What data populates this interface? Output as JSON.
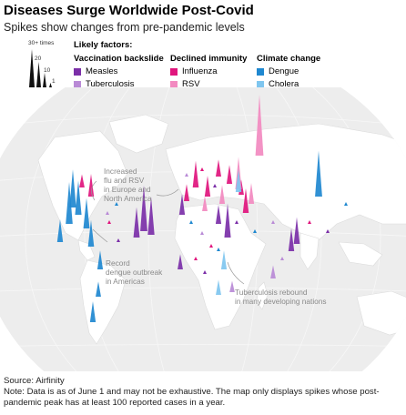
{
  "title": "Diseases Surge Worldwide Post-Covid",
  "subtitle": "Spikes show changes from pre-pandemic levels",
  "scale_legend": {
    "labels": [
      "30+ times",
      "20",
      "10",
      "1"
    ]
  },
  "legend": {
    "heading": "Likely factors:",
    "groups": [
      {
        "label": "Vaccination backslide",
        "items": [
          {
            "label": "Measles",
            "color": "#7b2fa8"
          },
          {
            "label": "Tuberculosis",
            "color": "#b98ad6"
          }
        ]
      },
      {
        "label": "Declined immunity",
        "items": [
          {
            "label": "Influenza",
            "color": "#e0157d"
          },
          {
            "label": "RSV",
            "color": "#f28ac0"
          }
        ]
      },
      {
        "label": "Climate change",
        "items": [
          {
            "label": "Dengue",
            "color": "#1f88d0"
          },
          {
            "label": "Cholera",
            "color": "#7fc6ef"
          }
        ]
      }
    ]
  },
  "annotations": {
    "flu_rsv": [
      "Increased",
      "flu and RSV",
      "in Europe and",
      "North America"
    ],
    "dengue": [
      "Record",
      "dengue outbreak",
      "in Americas"
    ],
    "tb": [
      "Tuberculosis rebound",
      "in many developing nations"
    ]
  },
  "spikes": [
    {
      "d": "Measles",
      "mult": 14
    },
    {
      "d": "Measles",
      "mult": 22
    },
    {
      "d": "Measles",
      "mult": 18
    },
    {
      "d": "Measles",
      "mult": 10
    },
    {
      "d": "Measles",
      "mult": 12
    },
    {
      "d": "Measles",
      "mult": 8
    },
    {
      "d": "Measles",
      "mult": 16
    },
    {
      "d": "Measles",
      "mult": 6
    },
    {
      "d": "Measles",
      "mult": 9
    },
    {
      "d": "Influenza",
      "mult": 12
    },
    {
      "d": "Influenza",
      "mult": 9
    },
    {
      "d": "Influenza",
      "mult": 7
    },
    {
      "d": "Influenza",
      "mult": 8
    },
    {
      "d": "Influenza",
      "mult": 6
    },
    {
      "d": "Influenza",
      "mult": 10
    },
    {
      "d": "Influenza",
      "mult": 5
    },
    {
      "d": "Influenza",
      "mult": 11
    },
    {
      "d": "Influenza",
      "mult": 7
    },
    {
      "d": "RSV",
      "mult": 30
    },
    {
      "d": "RSV",
      "mult": 15
    },
    {
      "d": "RSV",
      "mult": 9
    },
    {
      "d": "RSV",
      "mult": 6
    },
    {
      "d": "RSV",
      "mult": 8
    },
    {
      "d": "Dengue",
      "mult": 20
    },
    {
      "d": "Dengue",
      "mult": 16
    },
    {
      "d": "Dengue",
      "mult": 14
    },
    {
      "d": "Dengue",
      "mult": 12
    },
    {
      "d": "Dengue",
      "mult": 18
    },
    {
      "d": "Dengue",
      "mult": 10
    },
    {
      "d": "Dengue",
      "mult": 8
    },
    {
      "d": "Dengue",
      "mult": 22
    },
    {
      "d": "Dengue",
      "mult": 6
    },
    {
      "d": "Dengue",
      "mult": 9
    },
    {
      "d": "Cholera",
      "mult": 10
    },
    {
      "d": "Cholera",
      "mult": 8
    },
    {
      "d": "Cholera",
      "mult": 6
    },
    {
      "d": "Tuberculosis",
      "mult": 5
    },
    {
      "d": "Tuberculosis",
      "mult": 4
    }
  ],
  "footer": {
    "source": "Source: Airfinity",
    "note": "Note: Data is as of June 1 and may not be exhaustive. The map only displays spikes whose post-pandemic peak has at least 100 reported cases in a year."
  }
}
